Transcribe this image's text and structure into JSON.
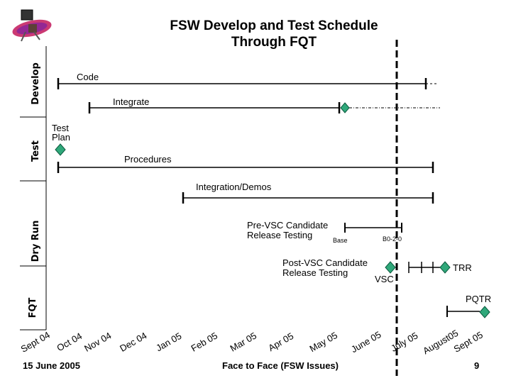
{
  "title_line1": "FSW Develop and Test Schedule",
  "title_line2": "Through FQT",
  "logo": "mission-logo",
  "sections": {
    "develop": "Develop",
    "test": "Test",
    "dry_run": "Dry Run",
    "fqt": "FQT"
  },
  "tasks": {
    "code": "Code",
    "integrate": "Integrate",
    "test_plan_1": "Test",
    "test_plan_2": "Plan",
    "procedures": "Procedures",
    "integration_demos": "Integration/Demos",
    "pre_vsc_1": "Pre-VSC Candidate",
    "pre_vsc_2": "Release Testing",
    "base": "Base",
    "b020": "B0-2-0",
    "post_vsc_1": "Post-VSC Candidate",
    "post_vsc_2": "Release Testing",
    "vsc": "VSC",
    "trr": "TRR",
    "pqtr": "PQTR"
  },
  "months": [
    "Sept 04",
    "Oct 04",
    "Nov 04",
    "Dec 04",
    "Jan 05",
    "Feb 05",
    "Mar 05",
    "Apr 05",
    "May 05",
    "June 05",
    "July 05",
    "August05",
    "Sept 05"
  ],
  "footer": {
    "date": "15 June 2005",
    "meeting": "Face to Face (FSW Issues)",
    "page": "9"
  },
  "colors": {
    "milestone": "#2fa87a",
    "line": "#000000",
    "status_line": "#000000"
  }
}
